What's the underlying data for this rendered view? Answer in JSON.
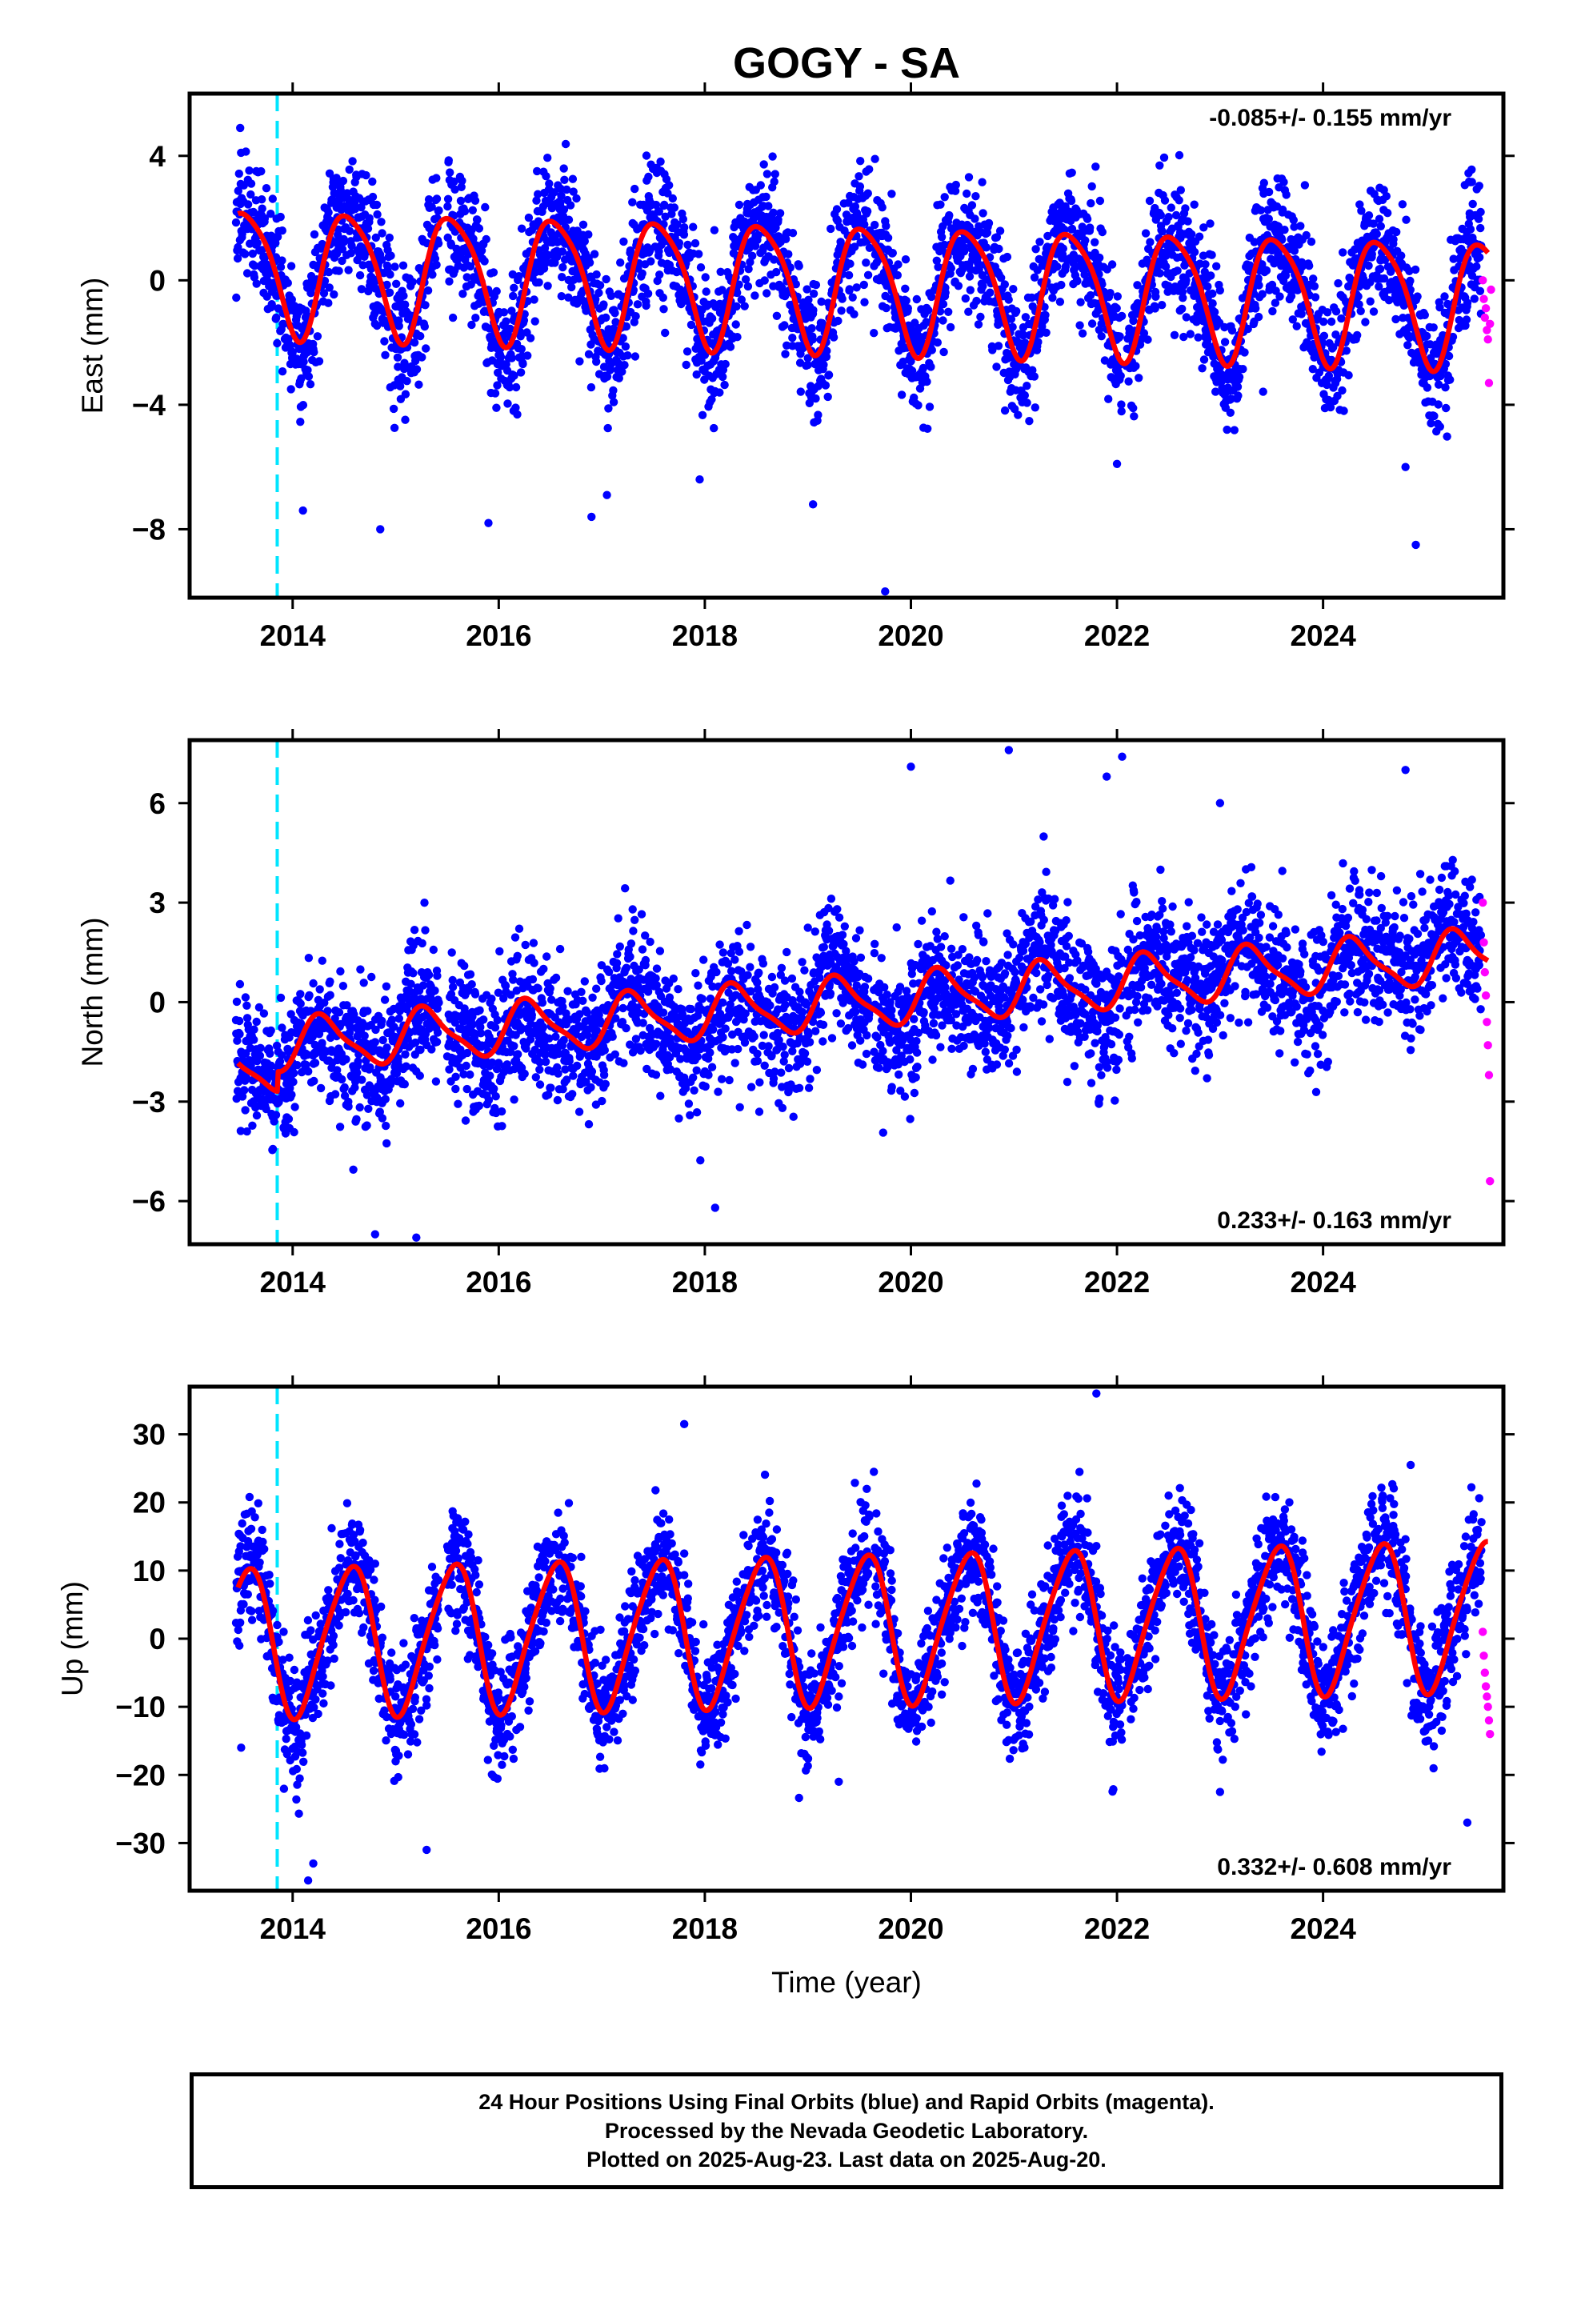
{
  "title": "GOGY - SA",
  "colors": {
    "final": "#0000ff",
    "rapid": "#ff00ff",
    "model": "#ff0000",
    "event": "#00e5ff",
    "axis": "#000000"
  },
  "caption": [
    "24 Hour Positions Using Final Orbits (blue) and Rapid Orbits (magenta).",
    "Processed by the Nevada Geodetic Laboratory.",
    "Plotted on 2025-Aug-23. Last data on 2025-Aug-20."
  ],
  "chart_data": [
    {
      "type": "scatter",
      "panel": "east",
      "ylabel": "East (mm)",
      "xlabel": "",
      "rate_label": "-0.085+/- 0.155 mm/yr",
      "rate_position": "top-right",
      "xlim": [
        2013.0,
        2025.75
      ],
      "ylim": [
        -10.2,
        6.0
      ],
      "xticks": [
        2014,
        2016,
        2018,
        2020,
        2022,
        2024
      ],
      "yticks": [
        4,
        0,
        -4,
        -8
      ],
      "ytick_labels": [
        "4",
        "0",
        "−4",
        "−8"
      ],
      "event_line_x": 2013.85,
      "model": {
        "offset": -0.15,
        "rate": -0.085,
        "ref_year": 2019.5,
        "annual_amp": 2.0,
        "annual_phase_year": 2013.55,
        "semiannual_amp": 0.35,
        "semiannual_phase_year": 2013.35
      },
      "final_orbit_x": [
        2013.47,
        2013.7,
        2013.84,
        2013.95,
        2014.2,
        2014.55,
        2014.82,
        2015.0,
        2015.25,
        2015.55,
        2015.8,
        2016.0,
        2016.3,
        2016.6,
        2016.85,
        2017.0,
        2017.3,
        2017.6,
        2017.85,
        2018.0,
        2018.3,
        2018.6,
        2018.85,
        2019.0,
        2019.3,
        2019.6,
        2019.85,
        2020.0,
        2020.3,
        2020.6,
        2020.85,
        2021.0,
        2021.3,
        2021.6,
        2021.85,
        2022.0,
        2022.3,
        2022.6,
        2022.85,
        2023.0,
        2023.3,
        2023.6,
        2023.85,
        2024.0,
        2024.3,
        2024.6,
        2024.85,
        2025.0,
        2025.3,
        2025.5
      ],
      "final_orbit_y": [
        2.2,
        2.6,
        -1.2,
        -2.0,
        0.5,
        2.3,
        -0.8,
        -2.2,
        0.3,
        2.1,
        -0.5,
        -2.4,
        0.4,
        1.9,
        -0.7,
        -2.3,
        0.2,
        1.8,
        -0.9,
        -2.4,
        0.1,
        1.7,
        -1.0,
        -2.5,
        0.0,
        1.6,
        -1.2,
        -2.6,
        -0.2,
        1.5,
        -1.3,
        -2.7,
        -0.1,
        1.4,
        -1.4,
        -2.7,
        -0.3,
        1.4,
        -1.3,
        -2.8,
        -0.3,
        1.3,
        -1.4,
        -2.8,
        -0.4,
        1.2,
        -1.5,
        -2.9,
        -0.6,
        0.7
      ],
      "rapid_orbit_x": [
        2025.55,
        2025.56,
        2025.57,
        2025.58,
        2025.59,
        2025.6,
        2025.61,
        2025.62,
        2025.63
      ],
      "rapid_orbit_y": [
        0.0,
        -0.6,
        -1.2,
        -0.9,
        -1.6,
        -1.9,
        -3.3,
        -1.4,
        -0.3
      ],
      "outliers_x": [
        2014.1,
        2014.85,
        2015.9,
        2016.9,
        2017.05,
        2017.95,
        2019.05,
        2019.75,
        2022.0,
        2024.8,
        2024.9
      ],
      "outliers_y": [
        -7.4,
        -8.0,
        -7.8,
        -7.6,
        -6.9,
        -6.4,
        -7.2,
        -10.0,
        -5.9,
        -6.0,
        -8.5
      ]
    },
    {
      "type": "scatter",
      "panel": "north",
      "ylabel": "North (mm)",
      "xlabel": "",
      "rate_label": "0.233+/- 0.163 mm/yr",
      "rate_position": "bottom-right",
      "xlim": [
        2013.0,
        2025.75
      ],
      "ylim": [
        -7.3,
        7.9
      ],
      "xticks": [
        2014,
        2016,
        2018,
        2020,
        2022,
        2024
      ],
      "yticks": [
        6,
        3,
        0,
        -3,
        -6
      ],
      "ytick_labels": [
        "6",
        "3",
        "0",
        "−3",
        "−6"
      ],
      "event_line_x": 2013.85,
      "model": {
        "offset": 0.0,
        "rate": 0.233,
        "ref_year": 2019.5,
        "annual_amp": 0.75,
        "annual_phase_year": 2013.3,
        "semiannual_amp": 0.2,
        "semiannual_phase_year": 2013.2,
        "pre_event_offset": -0.6
      },
      "final_orbit_x": [
        2013.5,
        2013.8,
        2014.2,
        2014.6,
        2015.0,
        2015.4,
        2015.8,
        2016.2,
        2016.6,
        2017.0,
        2017.4,
        2017.8,
        2018.2,
        2018.6,
        2019.0,
        2019.4,
        2019.8,
        2020.2,
        2020.6,
        2021.0,
        2021.4,
        2021.8,
        2022.2,
        2022.6,
        2023.0,
        2023.4,
        2023.8,
        2024.2,
        2024.6,
        2025.0,
        2025.4
      ],
      "final_orbit_y": [
        -1.5,
        -2.2,
        -1.0,
        -1.4,
        -1.8,
        -1.2,
        -1.6,
        -1.9,
        -1.3,
        -1.5,
        -1.0,
        -1.4,
        -0.8,
        -0.6,
        -0.9,
        -0.4,
        -0.2,
        0.3,
        0.6,
        0.5,
        0.9,
        0.7,
        1.2,
        0.9,
        1.3,
        1.1,
        1.6,
        1.4,
        1.9,
        1.5,
        2.0
      ],
      "rapid_orbit_x": [
        2025.55,
        2025.56,
        2025.57,
        2025.58,
        2025.59,
        2025.6,
        2025.61,
        2025.62
      ],
      "rapid_orbit_y": [
        3.0,
        1.8,
        0.9,
        0.2,
        -0.6,
        -1.3,
        -2.2,
        -5.4
      ],
      "outliers_x": [
        2014.8,
        2015.2,
        2018.1,
        2020.0,
        2020.95,
        2021.9,
        2022.05,
        2023.0,
        2024.8
      ],
      "outliers_y": [
        -7.0,
        -7.1,
        -6.2,
        7.1,
        7.6,
        6.8,
        7.4,
        6.0,
        7.0
      ]
    },
    {
      "type": "scatter",
      "panel": "up",
      "ylabel": "Up (mm)",
      "xlabel": "Time (year)",
      "rate_label": "0.332+/- 0.608 mm/yr",
      "rate_position": "bottom-right",
      "xlim": [
        2013.0,
        2025.75
      ],
      "ylim": [
        -37.0,
        37.0
      ],
      "xticks": [
        2014,
        2016,
        2018,
        2020,
        2022,
        2024
      ],
      "yticks": [
        30,
        20,
        10,
        0,
        -10,
        -20,
        -30
      ],
      "ytick_labels": [
        "30",
        "20",
        "10",
        "0",
        "−10",
        "−20",
        "−30"
      ],
      "event_line_x": 2013.85,
      "model": {
        "offset": 1.5,
        "rate": 0.332,
        "ref_year": 2019.5,
        "annual_amp": 10.8,
        "annual_phase_year": 2013.55,
        "semiannual_amp": 1.5,
        "semiannual_phase_year": 2013.7
      },
      "final_orbit_x": [
        2013.5,
        2013.85,
        2014.3,
        2014.8,
        2015.3,
        2015.8,
        2016.3,
        2016.8,
        2017.3,
        2017.8,
        2018.3,
        2018.8,
        2019.3,
        2019.8,
        2020.3,
        2020.8,
        2021.3,
        2021.8,
        2022.3,
        2022.8,
        2023.3,
        2023.8,
        2024.3,
        2024.8,
        2025.3
      ],
      "final_orbit_y": [
        -16.0,
        2.0,
        -9.5,
        11.0,
        -9.8,
        11.5,
        -9.2,
        12.0,
        -9.0,
        12.5,
        -8.8,
        12.6,
        -8.5,
        13.0,
        -8.2,
        13.2,
        -7.8,
        13.6,
        -7.4,
        14.0,
        -7.0,
        14.4,
        -6.6,
        14.6,
        -5.5
      ],
      "rapid_orbit_x": [
        2025.55,
        2025.56,
        2025.57,
        2025.58,
        2025.59,
        2025.6,
        2025.61,
        2025.62
      ],
      "rapid_orbit_y": [
        1.0,
        -2.5,
        -5.0,
        -7.0,
        -8.5,
        -10.0,
        -12.0,
        -14.0
      ],
      "outliers_x": [
        2014.15,
        2014.2,
        2015.3,
        2017.8,
        2019.3,
        2021.8,
        2023.0,
        2024.85,
        2025.4
      ],
      "outliers_y": [
        -35.5,
        -33.0,
        -31.0,
        31.5,
        -21.0,
        36.0,
        -22.5,
        25.5,
        -27.0
      ]
    }
  ]
}
